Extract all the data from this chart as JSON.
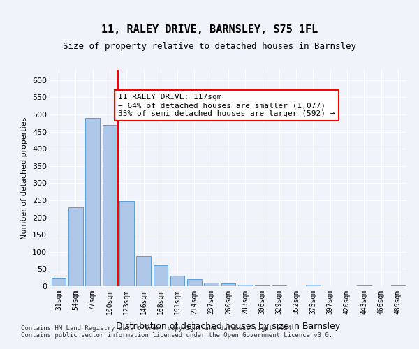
{
  "title1": "11, RALEY DRIVE, BARNSLEY, S75 1FL",
  "title2": "Size of property relative to detached houses in Barnsley",
  "xlabel": "Distribution of detached houses by size in Barnsley",
  "ylabel": "Number of detached properties",
  "categories": [
    "31sqm",
    "54sqm",
    "77sqm",
    "100sqm",
    "123sqm",
    "146sqm",
    "168sqm",
    "191sqm",
    "214sqm",
    "237sqm",
    "260sqm",
    "283sqm",
    "306sqm",
    "329sqm",
    "352sqm",
    "375sqm",
    "397sqm",
    "420sqm",
    "443sqm",
    "466sqm",
    "489sqm"
  ],
  "values": [
    25,
    230,
    490,
    470,
    248,
    88,
    60,
    30,
    20,
    10,
    8,
    5,
    3,
    2,
    1,
    5,
    1,
    0,
    2,
    0,
    2
  ],
  "bar_color": "#aec6e8",
  "bar_edge_color": "#5b9bd5",
  "vline_x": 3.5,
  "vline_color": "red",
  "annotation_text": "11 RALEY DRIVE: 117sqm\n← 64% of detached houses are smaller (1,077)\n35% of semi-detached houses are larger (592) →",
  "annotation_box_color": "white",
  "annotation_box_edge": "red",
  "ylim": [
    0,
    630
  ],
  "yticks": [
    0,
    50,
    100,
    150,
    200,
    250,
    300,
    350,
    400,
    450,
    500,
    550,
    600
  ],
  "footer": "Contains HM Land Registry data © Crown copyright and database right 2024.\nContains public sector information licensed under the Open Government Licence v3.0.",
  "bg_color": "#f0f4fa",
  "plot_bg_color": "#f0f4fa"
}
